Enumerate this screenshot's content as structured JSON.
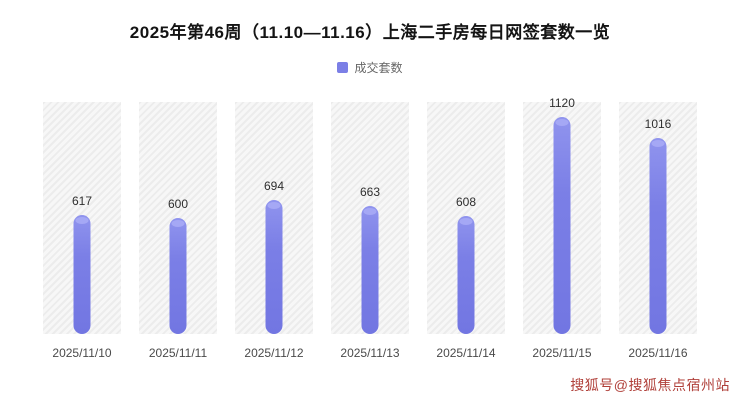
{
  "title": "2025年第46周（11.10—11.16）上海二手房每日网签套数一览",
  "legend": {
    "label": "成交套数",
    "color": "#7b7fe6"
  },
  "watermark": "搜狐号@搜狐焦点宿州站",
  "chart_data": {
    "type": "bar",
    "title": "2025年第46周（11.10—11.16）上海二手房每日网签套数一览",
    "categories": [
      "2025/11/10",
      "2025/11/11",
      "2025/11/12",
      "2025/11/13",
      "2025/11/14",
      "2025/11/15",
      "2025/11/16"
    ],
    "values": [
      617,
      600,
      694,
      663,
      608,
      1120,
      1016
    ],
    "series_name": "成交套数",
    "xlabel": "",
    "ylabel": "",
    "ylim": [
      0,
      1200
    ],
    "grid": false,
    "legend_position": "top",
    "bar_color": "#7b7fe6",
    "background_band_style": "diagonal-hatch"
  }
}
